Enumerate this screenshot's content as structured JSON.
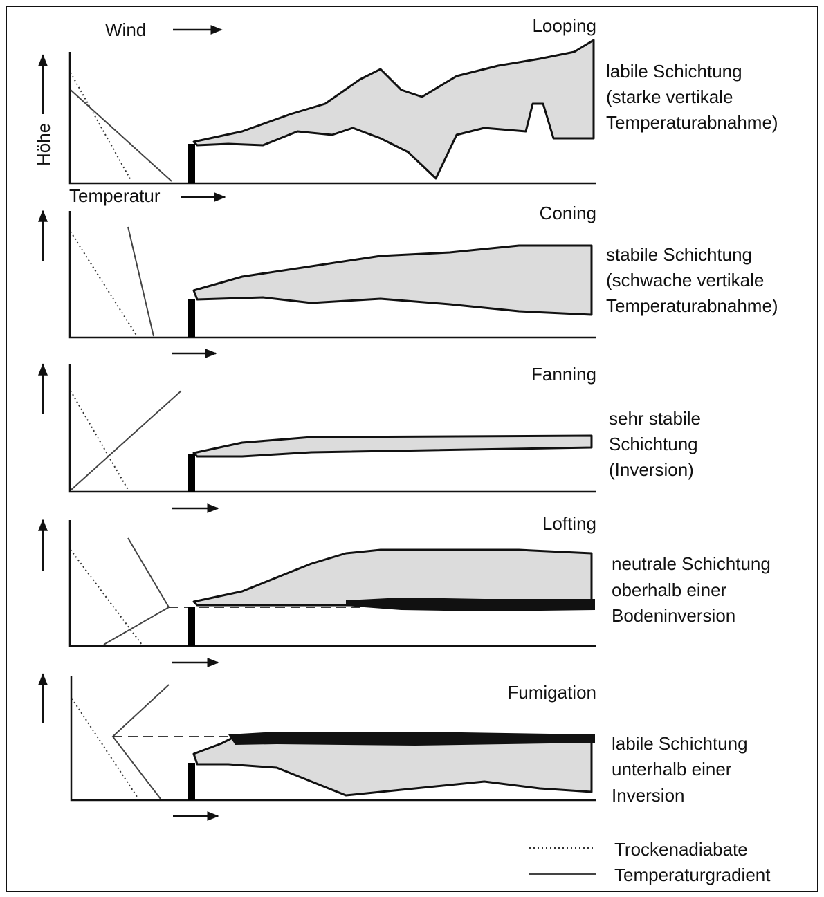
{
  "axis_labels": {
    "wind": "Wind",
    "height": "Höhe",
    "temperature": "Temperatur"
  },
  "panels": [
    {
      "title": "Looping",
      "description": [
        "labile Schichtung",
        "(starke vertikale",
        "Temperaturabnahme)"
      ]
    },
    {
      "title": "Coning",
      "description": [
        "stabile Schichtung",
        "(schwache vertikale",
        "Temperaturabnahme)"
      ]
    },
    {
      "title": "Fanning",
      "description": [
        "sehr stabile",
        "Schichtung",
        "(Inversion)"
      ]
    },
    {
      "title": "Lofting",
      "description": [
        "neutrale Schichtung",
        "oberhalb einer",
        "Bodeninversion"
      ]
    },
    {
      "title": "Fumigation",
      "description": [
        "labile Schichtung",
        "unterhalb einer",
        "Inversion"
      ]
    }
  ],
  "legend": [
    {
      "label": "Trockenadiabate"
    },
    {
      "label": "Temperaturgradient"
    }
  ]
}
